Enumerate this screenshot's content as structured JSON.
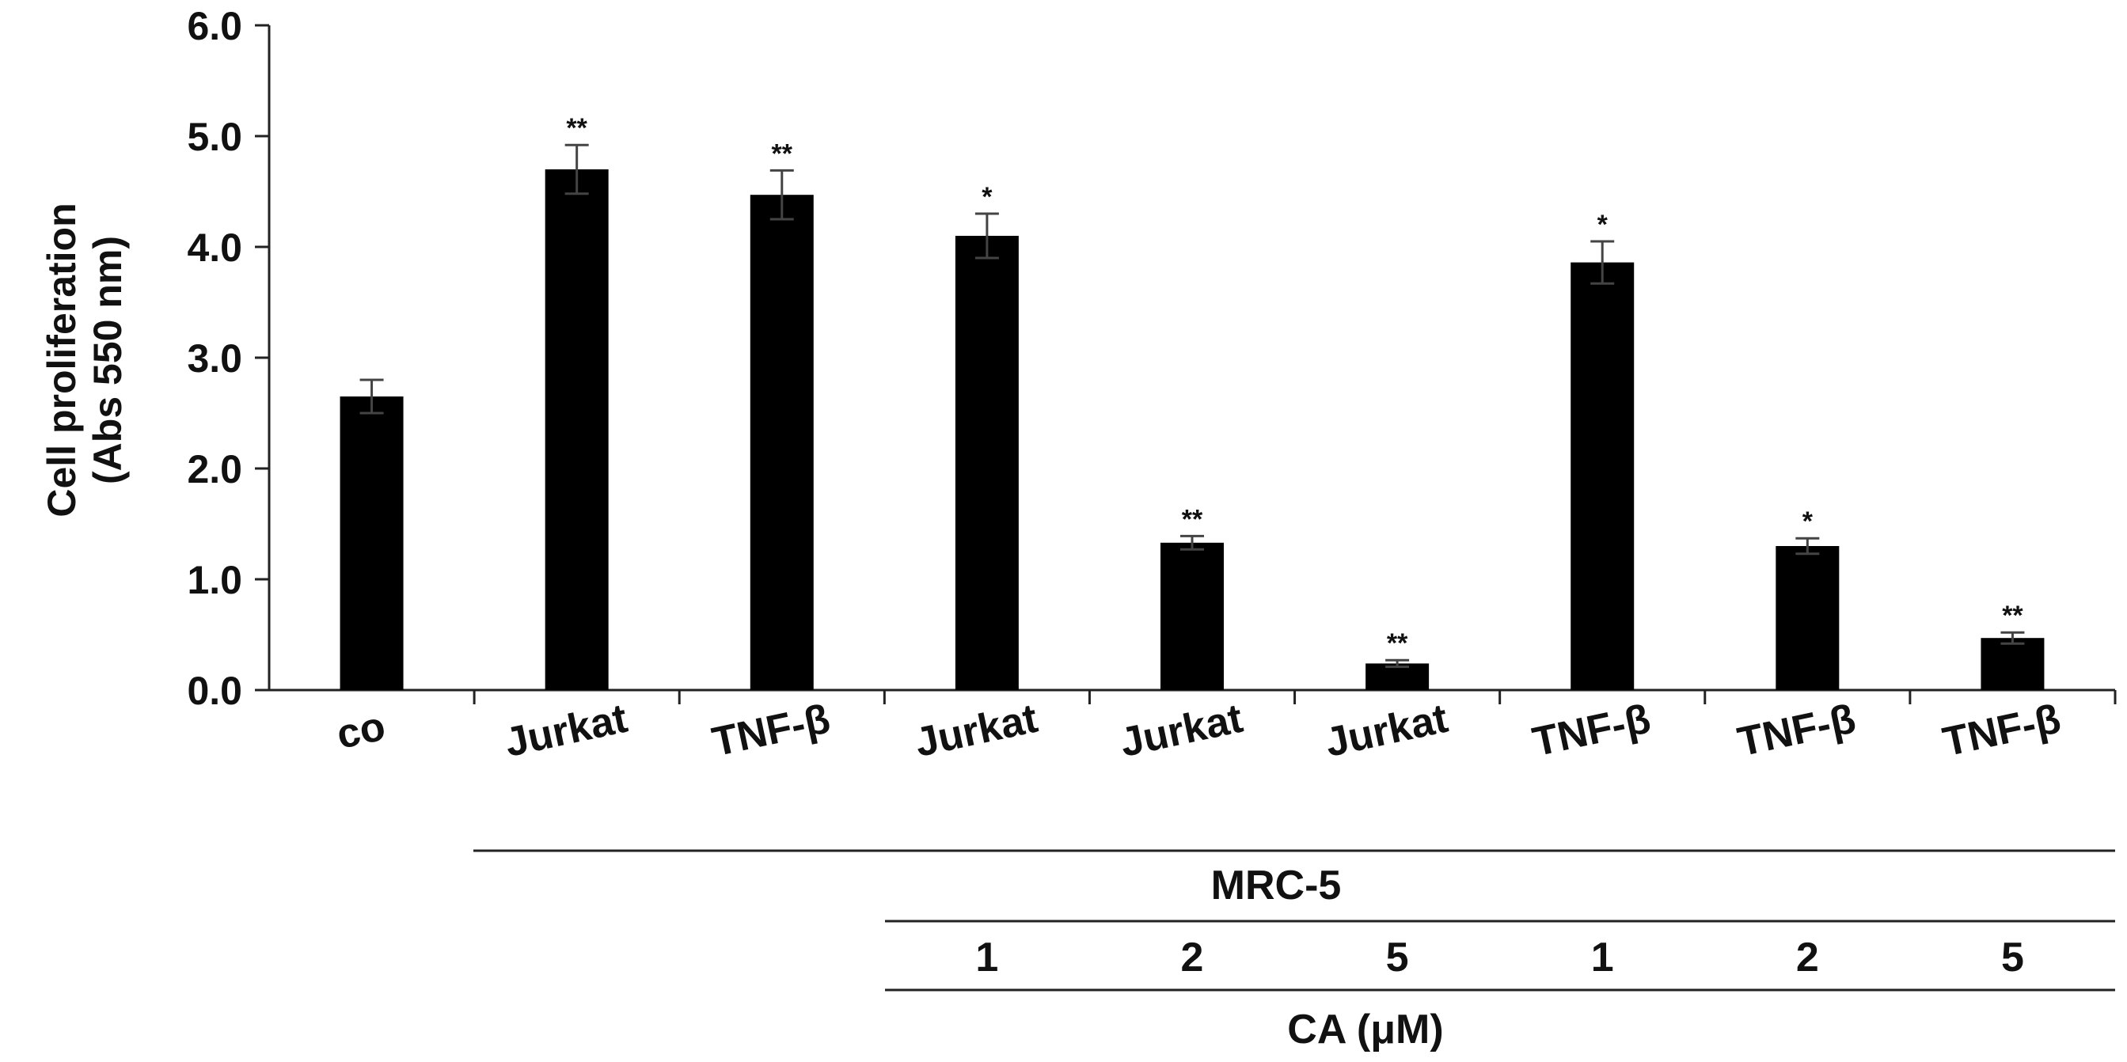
{
  "chart_data": {
    "type": "bar",
    "ylabel_line1": "Cell proliferation",
    "ylabel_line2": "(Abs 550 nm)",
    "ylim": [
      0,
      6
    ],
    "yticks": [
      "0.0",
      "1.0",
      "2.0",
      "3.0",
      "4.0",
      "5.0",
      "6.0"
    ],
    "categories": [
      "co",
      "Jurkat",
      "TNF-β",
      "Jurkat",
      "Jurkat",
      "Jurkat",
      "TNF-β",
      "TNF-β",
      "TNF-β"
    ],
    "values": [
      2.65,
      4.7,
      4.47,
      4.1,
      1.33,
      0.24,
      3.86,
      1.3,
      0.47
    ],
    "errors": [
      0.15,
      0.22,
      0.22,
      0.2,
      0.06,
      0.03,
      0.19,
      0.07,
      0.05
    ],
    "significance": [
      "",
      "**",
      "**",
      "*",
      "**",
      "**",
      "*",
      "*",
      "**"
    ],
    "bar_color": "#000000",
    "group_label": "MRC-5",
    "ca_concentrations": [
      "1",
      "2",
      "5",
      "1",
      "2",
      "5"
    ],
    "ca_label": "CA (μM)",
    "grid": false,
    "legend": "none"
  }
}
